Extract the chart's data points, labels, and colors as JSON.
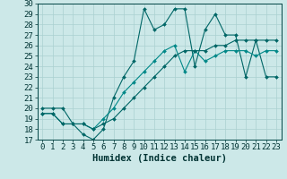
{
  "xlabel": "Humidex (Indice chaleur)",
  "xlim": [
    -0.5,
    23.5
  ],
  "ylim": [
    17,
    30
  ],
  "xticks": [
    0,
    1,
    2,
    3,
    4,
    5,
    6,
    7,
    8,
    9,
    10,
    11,
    12,
    13,
    14,
    15,
    16,
    17,
    18,
    19,
    20,
    21,
    22,
    23
  ],
  "yticks": [
    17,
    18,
    19,
    20,
    21,
    22,
    23,
    24,
    25,
    26,
    27,
    28,
    29,
    30
  ],
  "bg_color": "#cce8e8",
  "grid_color": "#aad0d0",
  "line_color1": "#006666",
  "line_color2": "#008888",
  "series1": [
    20.0,
    20.0,
    20.0,
    18.5,
    17.5,
    17.0,
    18.0,
    21.0,
    23.0,
    24.5,
    29.5,
    27.5,
    28.0,
    29.5,
    29.5,
    24.0,
    27.5,
    29.0,
    27.0,
    27.0,
    23.0,
    26.5,
    23.0,
    23.0
  ],
  "series2": [
    19.5,
    19.5,
    18.5,
    18.5,
    18.5,
    18.0,
    19.0,
    20.0,
    21.5,
    22.5,
    23.5,
    24.5,
    25.5,
    26.0,
    23.5,
    25.5,
    24.5,
    25.0,
    25.5,
    25.5,
    25.5,
    25.0,
    25.5,
    25.5
  ],
  "series3": [
    19.5,
    19.5,
    18.5,
    18.5,
    18.5,
    18.0,
    18.5,
    19.0,
    20.0,
    21.0,
    22.0,
    23.0,
    24.0,
    25.0,
    25.5,
    25.5,
    25.5,
    26.0,
    26.0,
    26.5,
    26.5,
    26.5,
    26.5,
    26.5
  ],
  "font_size": 6.5,
  "marker_size": 2.0
}
